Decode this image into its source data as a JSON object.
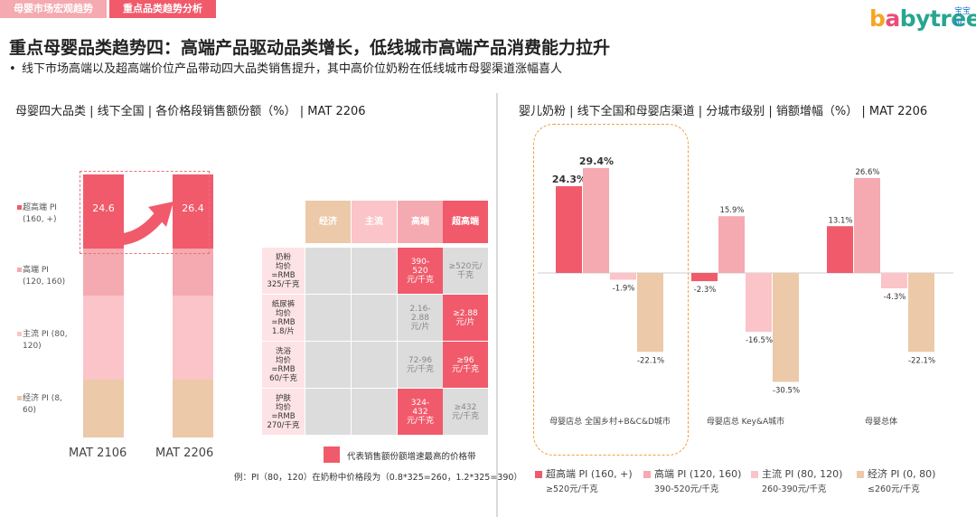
{
  "tabs": [
    "母婴市场宏观趋势",
    "重点品类趋势分析"
  ],
  "logo": {
    "text": "babytree",
    "cn": "宝宝树"
  },
  "headline": "重点母婴品类趋势四：高端产品驱动品类增长，低线城市高端产品消费能力拉升",
  "bullet": "线下市场高端以及超高端价位产品带动四大品类销售提升，其中高价位奶粉在低线城市母婴渠道涨幅喜人",
  "left_title": "母婴四大品类 | 线下全国 | 各价格段销售额份额（%） | MAT 2206",
  "right_title": "婴儿奶粉 | 线下全国和母婴店渠道 | 分城市级别 | 销额增幅（%） | MAT 2206",
  "left_legend": [
    {
      "l1": "超高端 PI",
      "l2": "(160, +)",
      "color": "#f15a6b"
    },
    {
      "l1": "高端 PI",
      "l2": "(120, 160)",
      "color": "#f4aab0"
    },
    {
      "l1": "主流 PI (80,",
      "l2": "120)",
      "color": "#fac4c8"
    },
    {
      "l1": "经济 PI (8,",
      "l2": "60)",
      "color": "#ecc9a9"
    }
  ],
  "matrix": {
    "headers": [
      "经济",
      "主流",
      "高端",
      "超高端"
    ],
    "rows": [
      {
        "label": [
          "奶粉",
          "均价",
          "=RMB",
          "325/千克"
        ],
        "cells": [
          "",
          "",
          "390-\n520\n元/千克",
          "≥520元/\n千克"
        ]
      },
      {
        "label": [
          "纸尿裤",
          "均价",
          "=RMB",
          "1.8/片"
        ],
        "cells": [
          "",
          "",
          "2.16-\n2.88\n元/片",
          "≥2.88\n元/片"
        ]
      },
      {
        "label": [
          "洗浴",
          "均价",
          "=RMB",
          "60/千克"
        ],
        "cells": [
          "",
          "",
          "72-96\n元/千克",
          "≥96\n元/千克"
        ]
      },
      {
        "label": [
          "护肤",
          "均价",
          "=RMB",
          "270/千克"
        ],
        "cells": [
          "",
          "",
          "324-\n432\n元/千克",
          "≥432\n元/千克"
        ]
      }
    ],
    "highlight": [
      [
        0,
        2
      ],
      [
        1,
        3
      ],
      [
        2,
        3
      ],
      [
        3,
        2
      ]
    ]
  },
  "note": "代表销售额份额增速最高的价格带",
  "example": "例：PI（80，120）在奶粉中价格段为（0.8*325=260，1.2*325=390）",
  "right_legend": [
    {
      "label": "超高端 PI (160, +)",
      "sub": "≥520元/千克",
      "color": "#f15a6b"
    },
    {
      "label": "高端 PI (120, 160)",
      "sub": "390-520元/千克",
      "color": "#f4aab0"
    },
    {
      "label": "主流 PI (80, 120)",
      "sub": "260-390元/千克",
      "color": "#fac4c8"
    },
    {
      "label": "经济 PI (0, 80)",
      "sub": "≤260元/千克",
      "color": "#ecc9a9"
    }
  ],
  "chart_data": [
    {
      "type": "bar",
      "stacked": true,
      "categories": [
        "MAT 2106",
        "MAT 2206"
      ],
      "series": [
        {
          "name": "超高端 PI (160, +)",
          "values": [
            24.6,
            26.4
          ],
          "color": "#f15a6b"
        },
        {
          "name": "高端 PI (120, 160)",
          "values": [
            null,
            null
          ],
          "color": "#f4aab0"
        },
        {
          "name": "主流 PI (80, 120)",
          "values": [
            null,
            null
          ],
          "color": "#fac4c8"
        },
        {
          "name": "经济 PI (8, 60)",
          "values": [
            null,
            null
          ],
          "color": "#ecc9a9"
        }
      ],
      "data_labels": [
        "24.6",
        "26.4"
      ]
    },
    {
      "type": "bar",
      "categories": [
        "母婴店总 全国乡村+B&C&D城市",
        "母婴店总 Key&A城市",
        "母婴总体"
      ],
      "series": [
        {
          "name": "超高端 PI (160, +)",
          "values": [
            24.3,
            -2.3,
            13.1
          ],
          "color": "#f15a6b"
        },
        {
          "name": "高端 PI (120, 160)",
          "values": [
            29.4,
            15.9,
            26.6
          ],
          "color": "#f4aab0"
        },
        {
          "name": "主流 PI (80, 120)",
          "values": [
            -1.9,
            -16.5,
            -4.3
          ],
          "color": "#fac4c8"
        },
        {
          "name": "经济 PI (0, 80)",
          "values": [
            -22.1,
            -30.5,
            -22.1
          ],
          "color": "#ecc9a9"
        }
      ],
      "data_labels": [
        [
          "24.3%",
          "29.4%",
          "-1.9%",
          "-22.1%"
        ],
        [
          "-2.3%",
          "15.9%",
          "-16.5%",
          "-30.5%"
        ],
        [
          "13.1%",
          "26.6%",
          "-4.3%",
          "-22.1%"
        ]
      ]
    }
  ]
}
